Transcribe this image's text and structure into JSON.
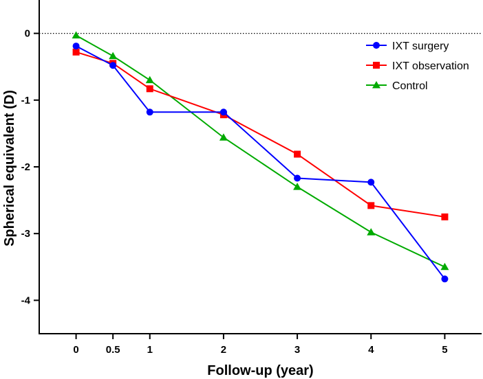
{
  "chart_data": {
    "type": "line",
    "title": "",
    "xlabel": "Follow-up (year)",
    "ylabel": "Spherical equivalent (D)",
    "x": [
      0,
      0.5,
      1,
      2,
      3,
      4,
      5
    ],
    "x_tick_labels": [
      "0",
      "0.5",
      "1",
      "2",
      "3",
      "4",
      "5"
    ],
    "y_ticks": [
      0,
      -1,
      -2,
      -3,
      -4
    ],
    "y_tick_labels": [
      "0",
      "-1",
      "-2",
      "-3",
      "-4"
    ],
    "xlim": [
      -0.5,
      5.5
    ],
    "ylim": [
      -4.5,
      0.5
    ],
    "reference_line": 0,
    "legend_position": "top-right",
    "series": [
      {
        "name": "IXT surgery",
        "marker": "circle",
        "color": "#0000ff",
        "values": [
          -0.19,
          -0.48,
          -1.18,
          -1.18,
          -2.17,
          -2.23,
          -3.68
        ]
      },
      {
        "name": "IXT observation",
        "marker": "square",
        "color": "#ff0000",
        "values": [
          -0.28,
          -0.45,
          -0.83,
          -1.22,
          -1.81,
          -2.58,
          -2.75
        ]
      },
      {
        "name": "Control",
        "marker": "triangle",
        "color": "#00aa00",
        "values": [
          -0.03,
          -0.34,
          -0.7,
          -1.56,
          -2.3,
          -2.98,
          -3.5
        ]
      }
    ]
  }
}
